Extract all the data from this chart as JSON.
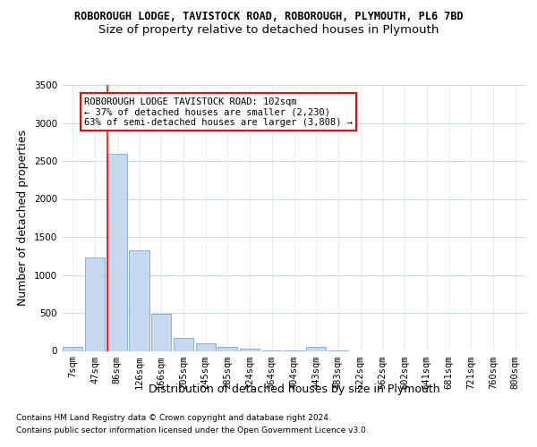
{
  "title_line1": "ROBOROUGH LODGE, TAVISTOCK ROAD, ROBOROUGH, PLYMOUTH, PL6 7BD",
  "title_line2": "Size of property relative to detached houses in Plymouth",
  "xlabel": "Distribution of detached houses by size in Plymouth",
  "ylabel": "Number of detached properties",
  "footer1": "Contains HM Land Registry data © Crown copyright and database right 2024.",
  "footer2": "Contains public sector information licensed under the Open Government Licence v3.0.",
  "categories": [
    "7sqm",
    "47sqm",
    "86sqm",
    "126sqm",
    "166sqm",
    "205sqm",
    "245sqm",
    "285sqm",
    "324sqm",
    "364sqm",
    "404sqm",
    "443sqm",
    "483sqm",
    "522sqm",
    "562sqm",
    "602sqm",
    "641sqm",
    "681sqm",
    "721sqm",
    "760sqm",
    "800sqm"
  ],
  "values": [
    50,
    1230,
    2600,
    1320,
    490,
    175,
    105,
    50,
    35,
    10,
    5,
    50,
    5,
    0,
    0,
    0,
    0,
    0,
    0,
    0,
    0
  ],
  "bar_color": "#c5d8f0",
  "bar_edge_color": "#7aa8d4",
  "red_line_index": 2,
  "ylim": [
    0,
    3500
  ],
  "yticks": [
    0,
    500,
    1000,
    1500,
    2000,
    2500,
    3000,
    3500
  ],
  "annotation_text": "ROBOROUGH LODGE TAVISTOCK ROAD: 102sqm\n← 37% of detached houses are smaller (2,230)\n63% of semi-detached houses are larger (3,808) →",
  "bg_color": "#ffffff",
  "grid_color": "#d0d8e8",
  "title1_fontsize": 8.5,
  "title2_fontsize": 9.5,
  "axis_label_fontsize": 9,
  "tick_fontsize": 7.5,
  "footer_fontsize": 6.5,
  "annotation_fontsize": 7.5
}
